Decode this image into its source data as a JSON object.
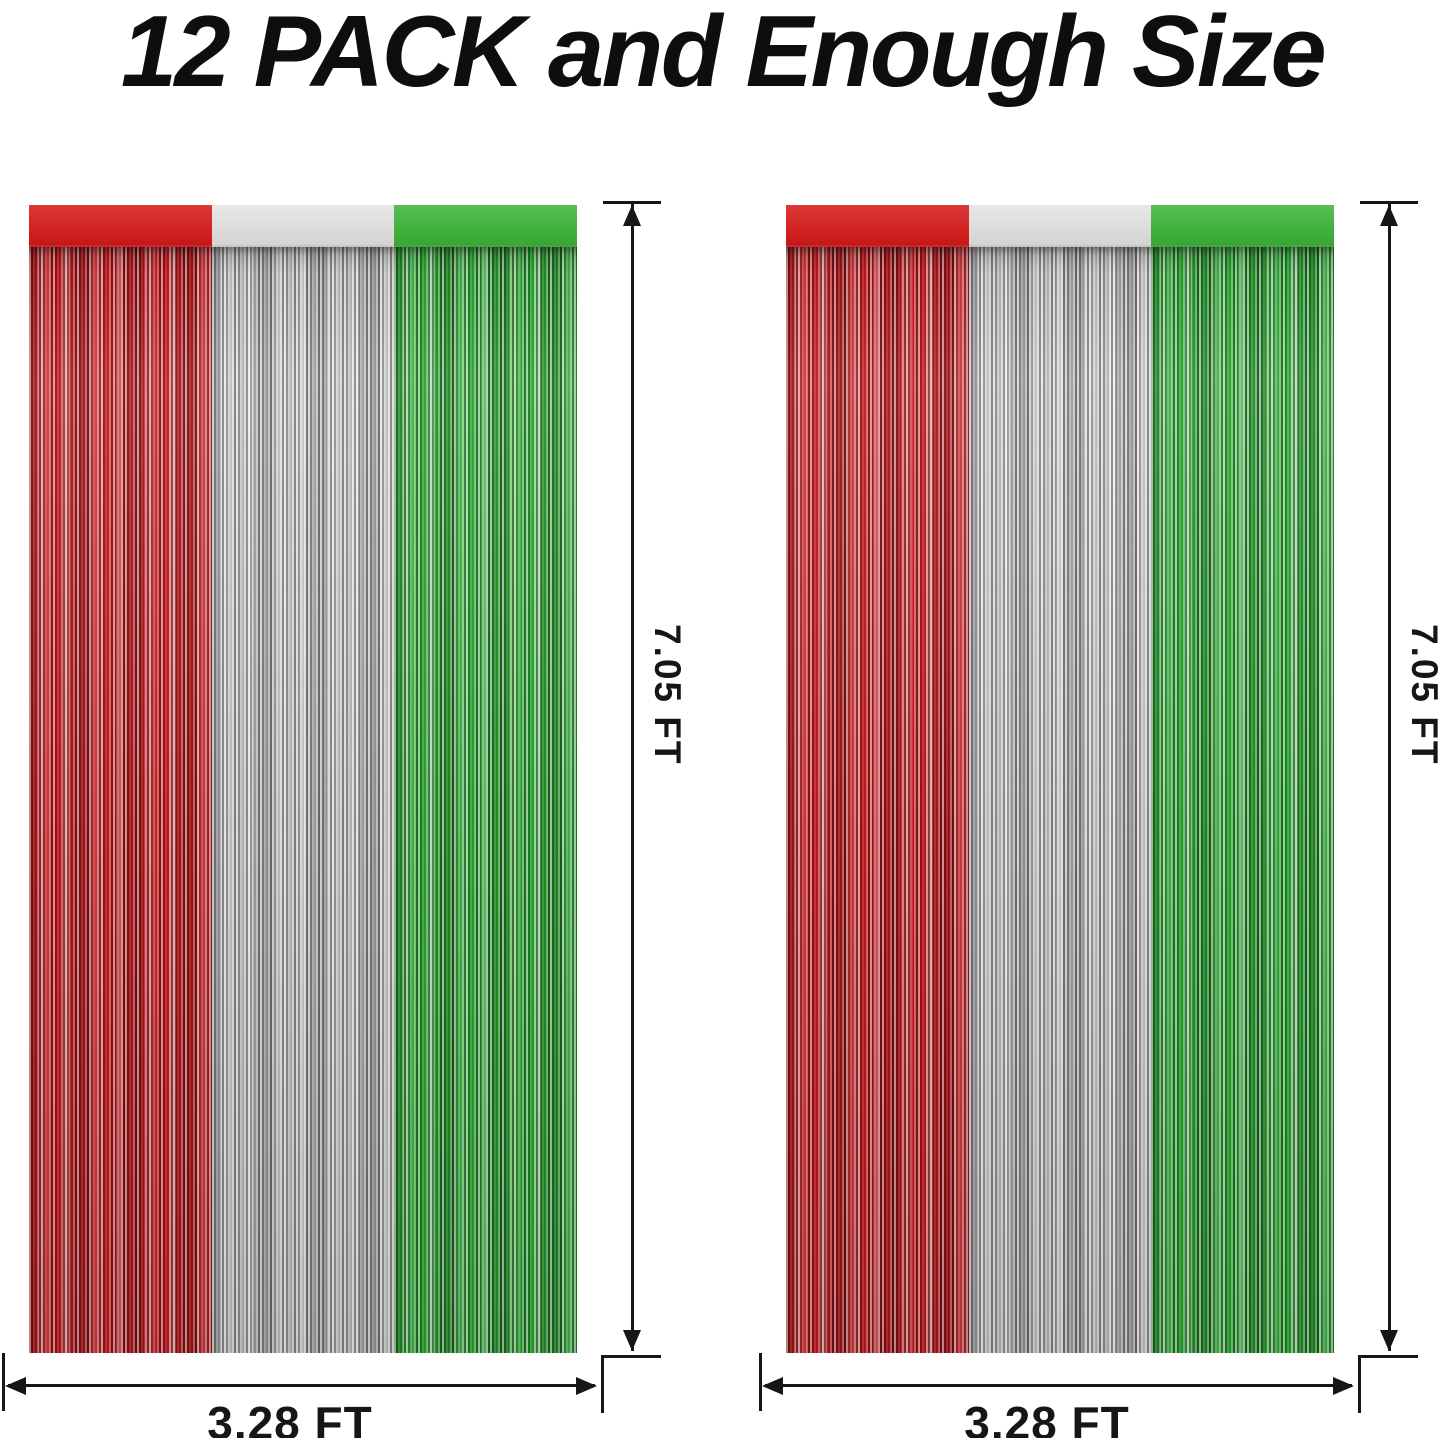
{
  "title": "12 PACK and Enough Size",
  "curtains": [
    {
      "id": "left",
      "panel_colors": [
        "red",
        "silver",
        "green"
      ],
      "height_label": "7.05 FT",
      "width_label": "3.28 FT"
    },
    {
      "id": "right",
      "panel_colors": [
        "red",
        "silver",
        "green"
      ],
      "height_label": "7.05 FT",
      "width_label": "3.28 FT"
    }
  ],
  "colors": {
    "background": "#ffffff",
    "title": "#0e0e0e",
    "annotation": "#161616",
    "red_header": "#d91717",
    "red_fringe": "#d31b20",
    "silver_header": "#e6e4e2",
    "silver_fringe": "#cbcbcb",
    "green_header": "#3ab437",
    "green_fringe": "#2fb135"
  }
}
